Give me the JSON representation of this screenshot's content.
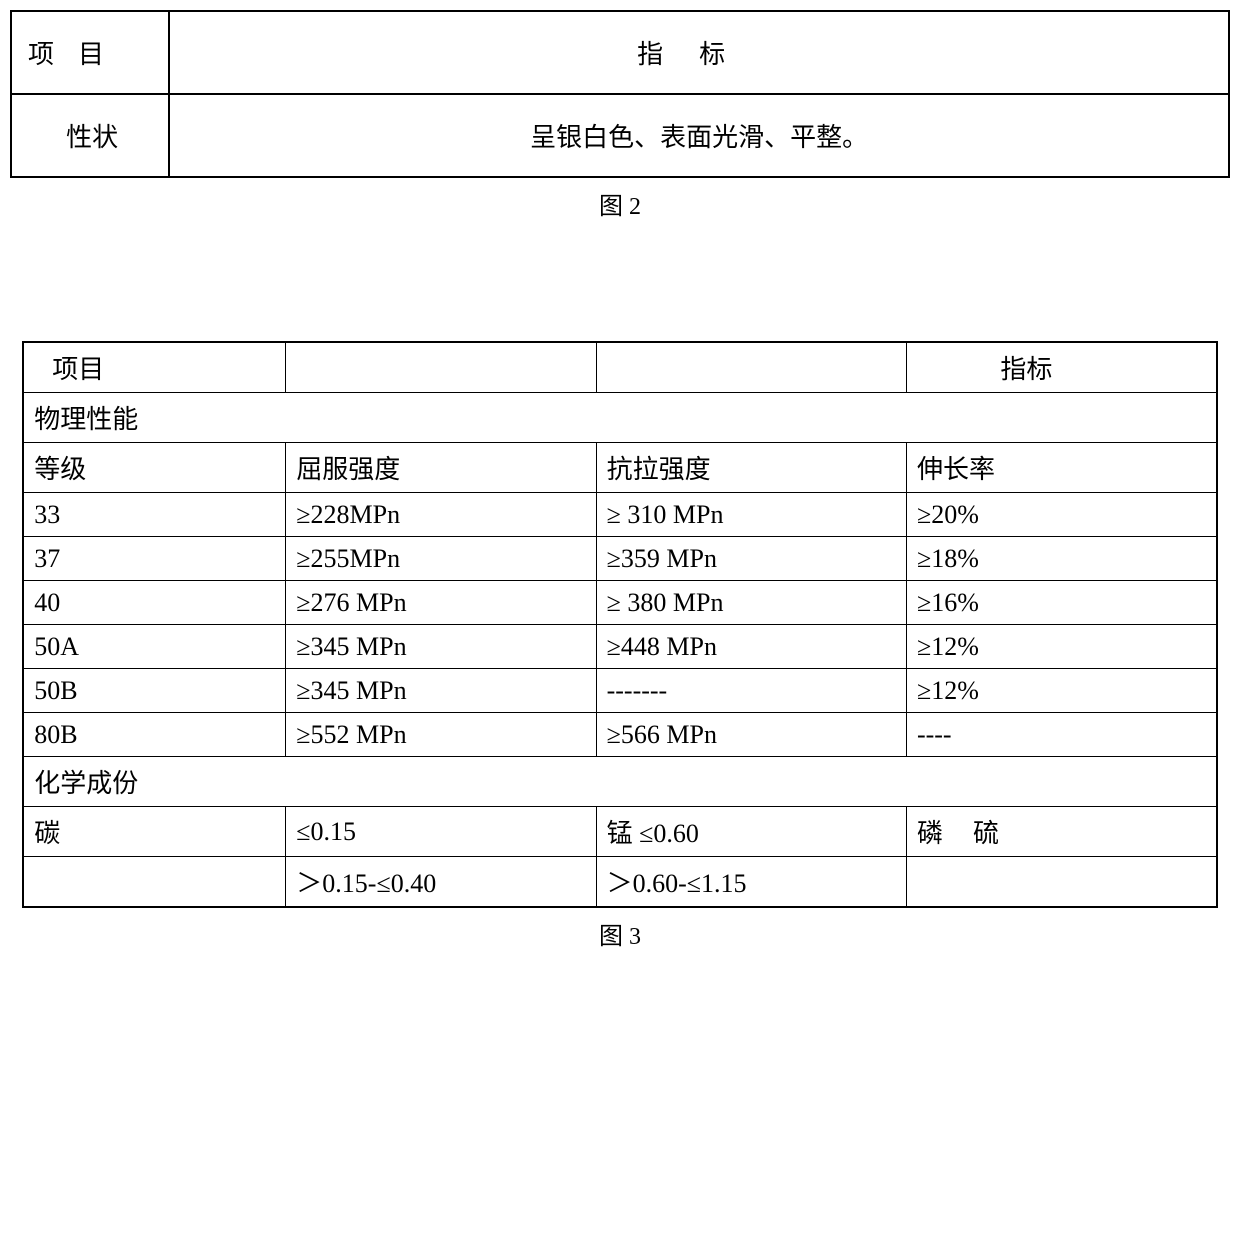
{
  "figure2": {
    "header_col1": "项目",
    "header_col2": "指标",
    "row1_col1": "性状",
    "row1_col2": "呈银白色、表面光滑、平整。",
    "caption": "图 2"
  },
  "figure3": {
    "caption": "图 3",
    "header_col1": "项目",
    "header_col4": "指标",
    "section_physical": "物理性能",
    "subheaders": {
      "grade": "等级",
      "yield": "屈服强度",
      "tensile": "抗拉强度",
      "elongation": "伸长率"
    },
    "rows": [
      {
        "grade": "33",
        "yield": "≥228MPn",
        "tensile": "≥ 310 MPn",
        "elong": "≥20%"
      },
      {
        "grade": "37",
        "yield": "≥255MPn",
        "tensile": "≥359 MPn",
        "elong": "≥18%"
      },
      {
        "grade": "40",
        "yield": "≥276 MPn",
        "tensile": "≥ 380 MPn",
        "elong": "≥16%"
      },
      {
        "grade": "50A",
        "yield": "≥345 MPn",
        "tensile": "≥448 MPn",
        "elong": "≥12%"
      },
      {
        "grade": "50B",
        "yield": "≥345 MPn",
        "tensile": "-------",
        "elong": "≥12%"
      },
      {
        "grade": "80B",
        "yield": "≥552 MPn",
        "tensile": "≥566 MPn",
        "elong": "----"
      }
    ],
    "section_chemical": "化学成份",
    "chem_row1": {
      "c1": "碳",
      "c2": "≤0.15",
      "c3": "锰 ≤0.60",
      "c4": "磷硫"
    },
    "chem_row2": {
      "c1": "",
      "c2": "＞0.15-≤0.40",
      "c3": "＞0.60-≤1.15",
      "c4": ""
    }
  },
  "colors": {
    "background": "#ffffff",
    "text": "#000000",
    "border": "#000000"
  },
  "fonts": {
    "family": "SimSun",
    "cell_fontsize_pt": 20,
    "caption_fontsize_pt": 18
  }
}
